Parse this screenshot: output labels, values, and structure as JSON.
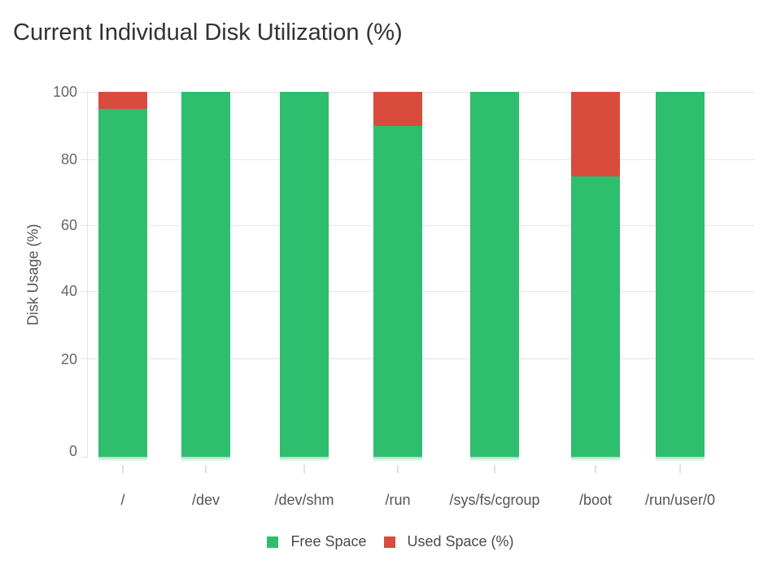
{
  "title": "Current Individual Disk Utilization (%)",
  "y_axis": {
    "label": "Disk Usage (%)",
    "ticks": [
      0,
      20,
      40,
      60,
      80,
      100
    ]
  },
  "legend": [
    {
      "label": "Free Space",
      "color": "#2ebe6e"
    },
    {
      "label": "Used Space (%)",
      "color": "#d94b3c"
    }
  ],
  "chart_data": {
    "type": "bar",
    "stacked": true,
    "title": "Current Individual Disk Utilization (%)",
    "xlabel": "",
    "ylabel": "Disk Usage (%)",
    "ylim": [
      0,
      100
    ],
    "grid": true,
    "legend_position": "bottom",
    "categories": [
      "/",
      "/dev",
      "/dev/shm",
      "/run",
      "/sys/fs/cgroup",
      "/boot",
      "/run/user/0"
    ],
    "series": [
      {
        "name": "Free Space",
        "color": "#2ebe6e",
        "values": [
          95,
          100,
          100,
          90,
          100,
          75,
          100
        ]
      },
      {
        "name": "Used Space (%)",
        "color": "#d94b3c",
        "values": [
          5,
          0,
          0,
          10,
          0,
          25,
          0
        ]
      }
    ]
  }
}
